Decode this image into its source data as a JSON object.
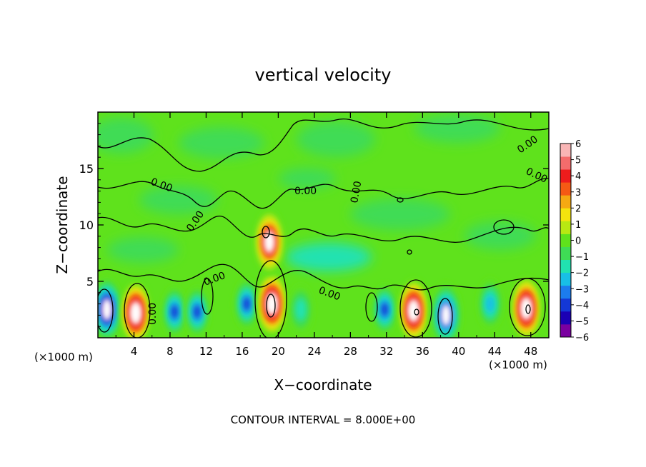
{
  "chart_data": {
    "type": "heatmap",
    "title": "vertical velocity",
    "xlabel": "X−coordinate",
    "ylabel": "Z−coordinate",
    "x_unit_left": "(×1000 m)",
    "x_unit_right": "(×1000 m)",
    "footer": "CONTOUR INTERVAL = 8.000E+00",
    "xlim": [
      0,
      50
    ],
    "ylim": [
      0,
      20
    ],
    "x_ticks": [
      "4",
      "8",
      "12",
      "16",
      "20",
      "24",
      "28",
      "32",
      "36",
      "40",
      "44",
      "48"
    ],
    "y_ticks": [
      "5",
      "10",
      "15"
    ],
    "colorbar": {
      "range": [
        -6,
        6
      ],
      "ticks": [
        "6",
        "5",
        "4",
        "3",
        "2",
        "1",
        "0",
        "−1",
        "−2",
        "−3",
        "−4",
        "−5",
        "−6"
      ],
      "colors": [
        "#7a00a0",
        "#1b00b4",
        "#1438d6",
        "#1c7ced",
        "#18bfe6",
        "#21e2b0",
        "#3fdc55",
        "#5fe21c",
        "#b8e812",
        "#f4e40e",
        "#f5a912",
        "#f55a14",
        "#ee1c1c",
        "#f46c6c",
        "#f9b6b6"
      ]
    },
    "contour_labels": [
      "0.00",
      "0.00",
      "0.00",
      "0.00",
      "0.00",
      "0.00",
      "0.00",
      "0.00",
      "0.00"
    ],
    "features": [
      {
        "x": 1.0,
        "z": 2.5,
        "w": -6
      },
      {
        "x": 4.2,
        "z": 2.2,
        "w": 6
      },
      {
        "x": 8.5,
        "z": 2.3,
        "w": -4
      },
      {
        "x": 11.0,
        "z": 2.3,
        "w": -4
      },
      {
        "x": 16.5,
        "z": 3.0,
        "w": -4
      },
      {
        "x": 19.3,
        "z": 3.0,
        "w": 6
      },
      {
        "x": 19.0,
        "z": 8.5,
        "w": 5
      },
      {
        "x": 22.5,
        "z": 2.5,
        "w": -2
      },
      {
        "x": 31.8,
        "z": 2.5,
        "w": -4
      },
      {
        "x": 35.0,
        "z": 2.4,
        "w": 6
      },
      {
        "x": 38.6,
        "z": 2.0,
        "w": -5
      },
      {
        "x": 43.5,
        "z": 3.0,
        "w": -3
      },
      {
        "x": 47.5,
        "z": 2.6,
        "w": 6
      }
    ]
  }
}
